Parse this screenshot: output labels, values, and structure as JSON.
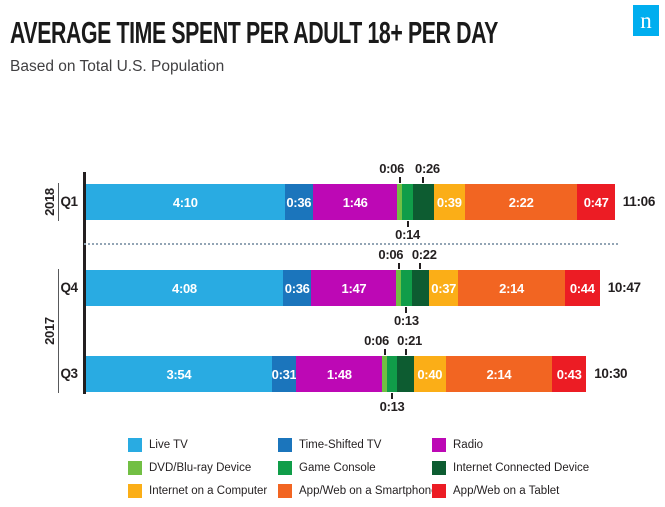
{
  "header": {
    "title": "AVERAGE TIME SPENT PER ADULT 18+ PER DAY",
    "subtitle": "Based on Total U.S. Population",
    "logo_letter": "n",
    "logo_color": "#00aeef"
  },
  "chart_data": {
    "type": "bar",
    "stacked": true,
    "orientation": "horizontal",
    "value_format": "h:mm per day",
    "legend_position": "bottom",
    "series": [
      {
        "name": "Live TV",
        "color": "#29abe2",
        "label_position": "inside"
      },
      {
        "name": "Time-Shifted TV",
        "color": "#1b75bc",
        "label_position": "inside"
      },
      {
        "name": "Radio",
        "color": "#bd08b5",
        "label_position": "inside"
      },
      {
        "name": "DVD/Blu-ray Device",
        "color": "#72bf44",
        "label_position": "above"
      },
      {
        "name": "Game Console",
        "color": "#109d49",
        "label_position": "below"
      },
      {
        "name": "Internet Connected Device",
        "color": "#0d5c31",
        "label_position": "above"
      },
      {
        "name": "Internet on a Computer",
        "color": "#fbae17",
        "label_position": "inside"
      },
      {
        "name": "App/Web on a Smartphone",
        "color": "#f26522",
        "label_position": "inside"
      },
      {
        "name": "App/Web on a Tablet",
        "color": "#ec1c24",
        "label_position": "inside"
      }
    ],
    "rows": [
      {
        "group": "2018",
        "label": "Q1",
        "values": [
          "4:10",
          "0:36",
          "1:46",
          "0:06",
          "0:14",
          "0:26",
          "0:39",
          "2:22",
          "0:47"
        ],
        "total": "11:06"
      },
      {
        "group": "2017",
        "label": "Q4",
        "values": [
          "4:08",
          "0:36",
          "1:47",
          "0:06",
          "0:13",
          "0:22",
          "0:37",
          "2:14",
          "0:44"
        ],
        "total": "10:47"
      },
      {
        "group": "2017",
        "label": "Q3",
        "values": [
          "3:54",
          "0:31",
          "1:48",
          "0:06",
          "0:13",
          "0:21",
          "0:40",
          "2:14",
          "0:43"
        ],
        "total": "10:30"
      }
    ],
    "separator_after_row": 0
  }
}
